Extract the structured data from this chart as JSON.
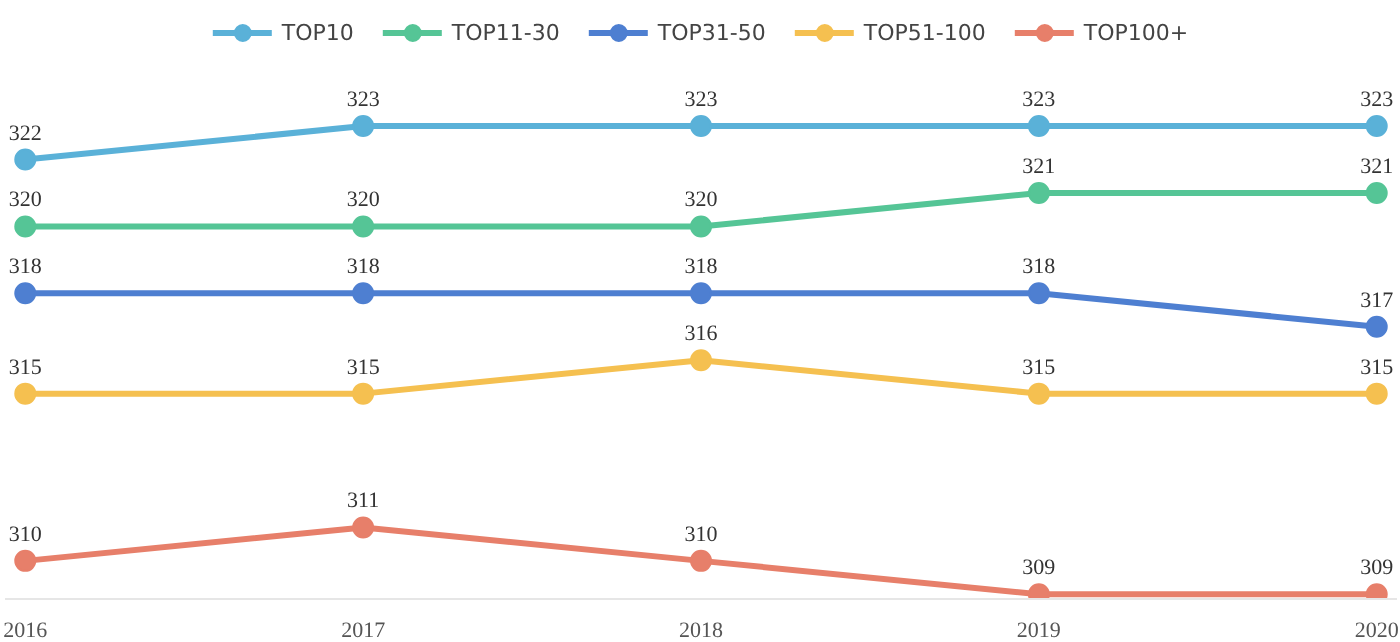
{
  "chart_data": {
    "type": "line",
    "categories": [
      "2016",
      "2017",
      "2018",
      "2019",
      "2020"
    ],
    "series": [
      {
        "name": "TOP10",
        "color": "#5ab1d8",
        "values": [
          322,
          323,
          323,
          323,
          323
        ]
      },
      {
        "name": "TOP11-30",
        "color": "#55c596",
        "values": [
          320,
          320,
          320,
          321,
          321
        ]
      },
      {
        "name": "TOP31-50",
        "color": "#4e7fd1",
        "values": [
          318,
          318,
          318,
          318,
          317
        ]
      },
      {
        "name": "TOP51-100",
        "color": "#f5c050",
        "values": [
          315,
          315,
          316,
          315,
          315
        ]
      },
      {
        "name": "TOP100+",
        "color": "#e77f6a",
        "values": [
          310,
          311,
          310,
          309,
          309
        ]
      }
    ],
    "tick_labels": "x",
    "data_labels": true,
    "legend": "top",
    "marker": "circle",
    "line_style": "solid",
    "grid": false
  }
}
